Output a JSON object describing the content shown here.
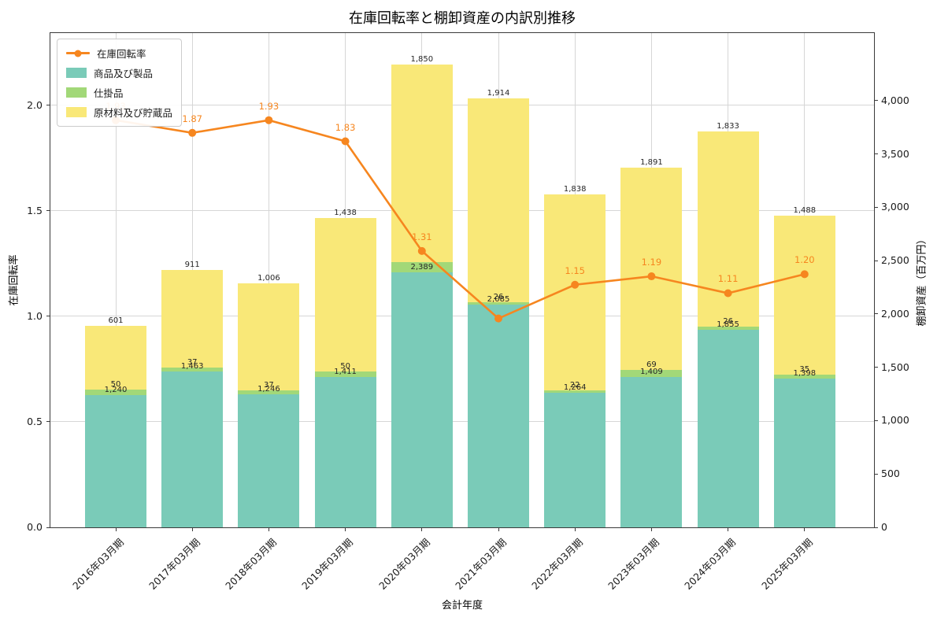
{
  "chart_data": {
    "type": "bar",
    "variant": "stacked-bars-with-line",
    "title": "在庫回転率と棚卸資産の内訳別推移",
    "xlabel": "会計年度",
    "ylabel_left": "在庫回転率",
    "ylabel_right": "棚卸資産（百万円）",
    "categories": [
      "2016年03月期",
      "2017年03月期",
      "2018年03月期",
      "2019年03月期",
      "2020年03月期",
      "2021年03月期",
      "2022年03月期",
      "2023年03月期",
      "2024年03月期",
      "2025年03月期"
    ],
    "bar_series": [
      {
        "name": "商品及び製品",
        "color": "#7acbb8",
        "values": [
          1240,
          1463,
          1246,
          1411,
          2389,
          2085,
          1264,
          1409,
          1855,
          1398
        ],
        "labels": [
          "1,240",
          "1,463",
          "1,246",
          "1,411",
          "2,389",
          "2,085",
          "1,264",
          "1,409",
          "1,855",
          "1,398"
        ]
      },
      {
        "name": "仕掛品",
        "color": "#a2d878",
        "values": [
          50,
          37,
          37,
          50,
          100,
          26,
          22,
          69,
          26,
          35
        ],
        "labels": [
          "50",
          "37",
          "37",
          "50",
          null,
          "26",
          "22",
          "69",
          "26",
          "35"
        ]
      },
      {
        "name": "原材料及び貯蔵品",
        "color": "#f9e878",
        "values": [
          601,
          911,
          1006,
          1438,
          1850,
          1914,
          1838,
          1891,
          1833,
          1488
        ],
        "labels": [
          "601",
          "911",
          "1,006",
          "1,438",
          "1,850",
          "1,914",
          "1,838",
          "1,891",
          "1,833",
          "1,488"
        ]
      }
    ],
    "line_series": {
      "name": "在庫回転率",
      "color": "#f6861f",
      "values": [
        1.93,
        1.87,
        1.93,
        1.83,
        1.31,
        0.99,
        1.15,
        1.19,
        1.11,
        1.2
      ],
      "labels": [
        "1.93",
        "1.87",
        "1.93",
        "1.83",
        "1.31",
        null,
        "1.15",
        "1.19",
        "1.11",
        "1.20"
      ]
    },
    "left_axis": {
      "min": 0,
      "max": 2.343,
      "tick_values": [
        0,
        0.5,
        1,
        1.5,
        2
      ],
      "tick_labels": [
        "0.0",
        "0.5",
        "1.0",
        "1.5",
        "2.0"
      ]
    },
    "right_axis": {
      "min": 0,
      "max": 4634,
      "tick_values": [
        0,
        500,
        1000,
        1500,
        2000,
        2500,
        3000,
        3500,
        4000
      ],
      "tick_labels": [
        "0",
        "500",
        "1,000",
        "1,500",
        "2,000",
        "2,500",
        "3,000",
        "3,500",
        "4,000"
      ]
    },
    "legend": {
      "position": "upper-left",
      "entries": [
        "在庫回転率",
        "商品及び製品",
        "仕掛品",
        "原材料及び貯蔵品"
      ]
    },
    "grid": true
  }
}
